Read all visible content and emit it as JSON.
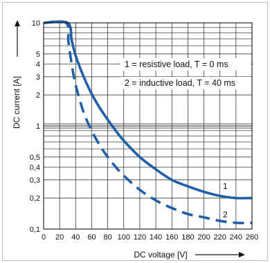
{
  "chart_data": {
    "type": "line",
    "title": "",
    "xlabel": "DC voltage [V]",
    "ylabel": "DC current [A]",
    "x_scale": "linear",
    "y_scale": "log",
    "xlim": [
      0,
      260
    ],
    "ylim": [
      0.1,
      10
    ],
    "x_ticks": [
      "0",
      "20",
      "40",
      "60",
      "80",
      "100",
      "120",
      "140",
      "160",
      "180",
      "200",
      "220",
      "240",
      "260"
    ],
    "y_ticks": [
      {
        "value": 0.1,
        "label": "0,1"
      },
      {
        "value": 0.2,
        "label": "0,2"
      },
      {
        "value": 0.3,
        "label": "0,3"
      },
      {
        "value": 0.4,
        "label": "0,4"
      },
      {
        "value": 0.5,
        "label": "0,5"
      },
      {
        "value": 1,
        "label": "1"
      },
      {
        "value": 2,
        "label": "2"
      },
      {
        "value": 3,
        "label": "3"
      },
      {
        "value": 4,
        "label": "4"
      },
      {
        "value": 5,
        "label": "5"
      },
      {
        "value": 10,
        "label": "10"
      }
    ],
    "grid": true,
    "series": [
      {
        "name": "1",
        "description": "1 = resistive load, T = 0 ms",
        "style": "solid",
        "color": "#1f5fa8",
        "x": [
          0,
          30,
          35,
          40,
          50,
          60,
          70,
          80,
          90,
          100,
          120,
          140,
          160,
          180,
          200,
          220,
          240,
          260
        ],
        "y": [
          10,
          10,
          6.8,
          4.8,
          3.0,
          2.05,
          1.5,
          1.15,
          0.9,
          0.72,
          0.5,
          0.38,
          0.3,
          0.26,
          0.23,
          0.21,
          0.2,
          0.2
        ]
      },
      {
        "name": "2",
        "description": "2 = inductive load, T = 40 ms",
        "style": "dashed",
        "color": "#1f5fa8",
        "x": [
          0,
          28,
          31,
          35,
          40,
          50,
          60,
          70,
          80,
          90,
          100,
          120,
          140,
          160,
          180,
          200,
          220,
          240,
          260
        ],
        "y": [
          10,
          10,
          6.5,
          4.0,
          2.5,
          1.35,
          0.9,
          0.65,
          0.5,
          0.4,
          0.33,
          0.24,
          0.19,
          0.16,
          0.14,
          0.13,
          0.12,
          0.115,
          0.115
        ]
      }
    ],
    "legend": {
      "placement": "top-right",
      "entries": [
        "1 = resistive load, T = 0 ms",
        "2 = inductive load, T = 40 ms"
      ]
    },
    "annotations": [
      "1",
      "2"
    ]
  }
}
